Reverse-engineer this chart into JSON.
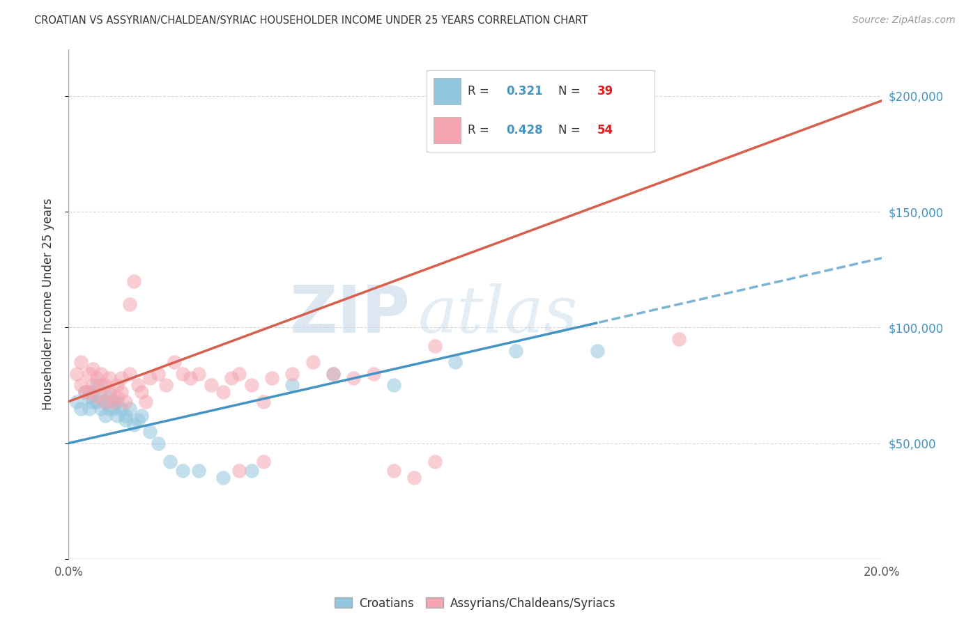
{
  "title": "CROATIAN VS ASSYRIAN/CHALDEAN/SYRIAC HOUSEHOLDER INCOME UNDER 25 YEARS CORRELATION CHART",
  "source_text": "Source: ZipAtlas.com",
  "ylabel": "Householder Income Under 25 years",
  "xmin": 0.0,
  "xmax": 0.2,
  "ymin": 0,
  "ymax": 220000,
  "yticks": [
    0,
    50000,
    100000,
    150000,
    200000
  ],
  "ytick_labels": [
    "",
    "$50,000",
    "$100,000",
    "$150,000",
    "$200,000"
  ],
  "xticks": [
    0.0,
    0.02,
    0.04,
    0.06,
    0.08,
    0.1,
    0.12,
    0.14,
    0.16,
    0.18,
    0.2
  ],
  "xtick_labels_show": [
    "0.0%",
    "",
    "",
    "",
    "",
    "",
    "",
    "",
    "",
    "",
    "20.0%"
  ],
  "legend_R1": "0.321",
  "legend_N1": "39",
  "legend_R2": "0.428",
  "legend_N2": "54",
  "croatian_color": "#92c5de",
  "assyrian_color": "#f4a5b0",
  "line_color_blue": "#4393c3",
  "line_color_pink": "#d6604d",
  "background_color": "#ffffff",
  "grid_color": "#cccccc",
  "watermark_zip_color": "#c8daea",
  "watermark_atlas_color": "#c8daea",
  "croatian_x": [
    0.002,
    0.003,
    0.004,
    0.005,
    0.005,
    0.006,
    0.006,
    0.007,
    0.007,
    0.008,
    0.008,
    0.009,
    0.009,
    0.01,
    0.01,
    0.011,
    0.011,
    0.012,
    0.012,
    0.013,
    0.014,
    0.014,
    0.015,
    0.016,
    0.017,
    0.018,
    0.02,
    0.022,
    0.025,
    0.028,
    0.032,
    0.038,
    0.045,
    0.055,
    0.065,
    0.08,
    0.095,
    0.11,
    0.13
  ],
  "croatian_y": [
    68000,
    65000,
    72000,
    70000,
    65000,
    68000,
    72000,
    68000,
    75000,
    65000,
    70000,
    62000,
    68000,
    65000,
    70000,
    68000,
    65000,
    62000,
    68000,
    65000,
    60000,
    62000,
    65000,
    58000,
    60000,
    62000,
    55000,
    50000,
    42000,
    38000,
    38000,
    35000,
    38000,
    75000,
    80000,
    75000,
    85000,
    90000,
    90000
  ],
  "assyrian_x": [
    0.002,
    0.003,
    0.003,
    0.004,
    0.005,
    0.005,
    0.006,
    0.006,
    0.007,
    0.007,
    0.008,
    0.008,
    0.009,
    0.009,
    0.01,
    0.01,
    0.011,
    0.012,
    0.012,
    0.013,
    0.013,
    0.014,
    0.015,
    0.015,
    0.016,
    0.017,
    0.018,
    0.019,
    0.02,
    0.022,
    0.024,
    0.026,
    0.028,
    0.03,
    0.032,
    0.035,
    0.038,
    0.04,
    0.042,
    0.045,
    0.048,
    0.05,
    0.055,
    0.06,
    0.065,
    0.07,
    0.075,
    0.08,
    0.085,
    0.09,
    0.042,
    0.048,
    0.09,
    0.15
  ],
  "assyrian_y": [
    80000,
    75000,
    85000,
    72000,
    80000,
    72000,
    75000,
    82000,
    70000,
    78000,
    75000,
    80000,
    68000,
    75000,
    72000,
    78000,
    68000,
    75000,
    70000,
    72000,
    78000,
    68000,
    110000,
    80000,
    120000,
    75000,
    72000,
    68000,
    78000,
    80000,
    75000,
    85000,
    80000,
    78000,
    80000,
    75000,
    72000,
    78000,
    80000,
    75000,
    68000,
    78000,
    80000,
    85000,
    80000,
    78000,
    80000,
    38000,
    35000,
    42000,
    38000,
    42000,
    92000,
    95000
  ],
  "trend_blue_solid_end": 0.13,
  "trend_blue_dashed_start": 0.13
}
